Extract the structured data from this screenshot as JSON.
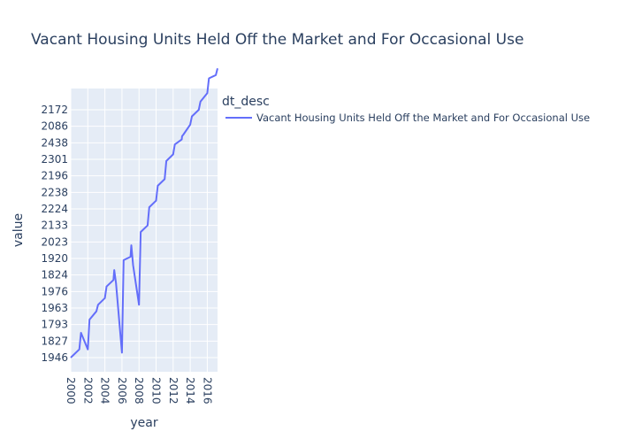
{
  "colors": {
    "background": "#ffffff",
    "plot_background": "#e5ecf6",
    "grid": "#ffffff",
    "series": "#636efa",
    "text": "#2a3f5f"
  },
  "legend": {
    "title": "dt_desc"
  },
  "chart_data": {
    "type": "line",
    "title": "Vacant Housing Units Held Off the Market and For Occasional Use",
    "xlabel": "year",
    "ylabel": "value",
    "y_axis_type": "category",
    "grid": true,
    "legend_position": "right",
    "x_tick_labels": [
      "2000",
      "2002",
      "2004",
      "2006",
      "2008",
      "2010",
      "2012",
      "2014",
      "2016"
    ],
    "y_categories": [
      "1946",
      "1827",
      "1793",
      "1963",
      "1976",
      "1824",
      "1920",
      "2023",
      "2133",
      "2224",
      "2238",
      "2196",
      "2301",
      "2438",
      "2086",
      "2172"
    ],
    "xlim": [
      2000,
      2017.2
    ],
    "series": [
      {
        "name": "Vacant Housing Units Held Off the Market and For Occasional Use",
        "x": [
          2000,
          2001,
          2001.2,
          2002,
          2002.2,
          2003,
          2003.2,
          2004,
          2004.2,
          2005,
          2005.1,
          2005.3,
          2006,
          2006.2,
          2007,
          2007.1,
          2007.3,
          2008,
          2008.2,
          2009,
          2009.2,
          2010,
          2010.2,
          2011,
          2011.2,
          2012,
          2012.2,
          2013,
          2013.05,
          2013.2,
          2014,
          2014.2,
          2015,
          2015.2,
          2016,
          2016.2,
          2017,
          2017.2
        ],
        "y": [
          0,
          0.5,
          1.5,
          0.5,
          2.3,
          2.8,
          3.2,
          3.6,
          4.3,
          4.7,
          5.3,
          4.5,
          0.3,
          5.9,
          6.1,
          6.8,
          5.6,
          3.2,
          7.6,
          8,
          9.1,
          9.5,
          10.4,
          10.8,
          11.9,
          12.3,
          12.9,
          13.2,
          13.4,
          13.5,
          14.1,
          14.6,
          15,
          15.5,
          16,
          16.9,
          17.1,
          17.5
        ]
      }
    ]
  }
}
